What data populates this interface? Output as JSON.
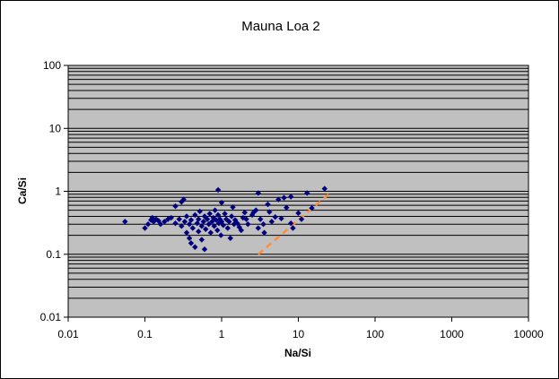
{
  "chart_data": {
    "type": "scatter",
    "title": "Mauna Loa 2",
    "xlabel": "Na/Si",
    "ylabel": "Ca/Si",
    "xscale": "log",
    "yscale": "log",
    "xlim": [
      0.01,
      10000
    ],
    "ylim": [
      0.01,
      100
    ],
    "xticks": [
      0.01,
      0.1,
      1,
      10,
      100,
      1000,
      10000
    ],
    "yticks": [
      0.01,
      0.1,
      1,
      10,
      100
    ],
    "xtick_labels": [
      "0.01",
      "0.1",
      "1",
      "10",
      "100",
      "1000",
      "10000"
    ],
    "ytick_labels": [
      "0.01",
      "0.1",
      "1",
      "10",
      "100"
    ],
    "grid": "horizontal major and minor gridlines",
    "legend": "none",
    "colors": {
      "plot_area": "#c0c0c0",
      "gridline": "#000000",
      "marker": "#000080",
      "trend_line": "#ff8c3a"
    },
    "series": [
      {
        "marker": "diamond",
        "points": [
          [
            0.055,
            0.33
          ],
          [
            0.1,
            0.26
          ],
          [
            0.11,
            0.3
          ],
          [
            0.12,
            0.35
          ],
          [
            0.125,
            0.38
          ],
          [
            0.13,
            0.33
          ],
          [
            0.14,
            0.36
          ],
          [
            0.15,
            0.34
          ],
          [
            0.16,
            0.3
          ],
          [
            0.18,
            0.33
          ],
          [
            0.2,
            0.36
          ],
          [
            0.22,
            0.38
          ],
          [
            0.25,
            0.31
          ],
          [
            0.25,
            0.58
          ],
          [
            0.28,
            0.36
          ],
          [
            0.3,
            0.28
          ],
          [
            0.3,
            0.68
          ],
          [
            0.32,
            0.74
          ],
          [
            0.33,
            0.33
          ],
          [
            0.35,
            0.4
          ],
          [
            0.35,
            0.22
          ],
          [
            0.38,
            0.18
          ],
          [
            0.38,
            0.3
          ],
          [
            0.4,
            0.35
          ],
          [
            0.4,
            0.15
          ],
          [
            0.42,
            0.26
          ],
          [
            0.45,
            0.42
          ],
          [
            0.45,
            0.13
          ],
          [
            0.48,
            0.31
          ],
          [
            0.5,
            0.36
          ],
          [
            0.5,
            0.23
          ],
          [
            0.52,
            0.48
          ],
          [
            0.55,
            0.28
          ],
          [
            0.55,
            0.17
          ],
          [
            0.58,
            0.33
          ],
          [
            0.6,
            0.4
          ],
          [
            0.6,
            0.12
          ],
          [
            0.62,
            0.25
          ],
          [
            0.65,
            0.36
          ],
          [
            0.68,
            0.3
          ],
          [
            0.7,
            0.44
          ],
          [
            0.72,
            0.22
          ],
          [
            0.75,
            0.33
          ],
          [
            0.78,
            0.38
          ],
          [
            0.8,
            0.28
          ],
          [
            0.82,
            0.5
          ],
          [
            0.85,
            0.35
          ],
          [
            0.88,
            0.24
          ],
          [
            0.9,
            1.05
          ],
          [
            0.9,
            0.42
          ],
          [
            0.92,
            0.31
          ],
          [
            0.95,
            0.36
          ],
          [
            0.98,
            0.2
          ],
          [
            1.0,
            0.66
          ],
          [
            1.0,
            0.33
          ],
          [
            1.05,
            0.29
          ],
          [
            1.1,
            0.44
          ],
          [
            1.15,
            0.36
          ],
          [
            1.2,
            0.26
          ],
          [
            1.25,
            0.33
          ],
          [
            1.3,
            0.18
          ],
          [
            1.35,
            0.4
          ],
          [
            1.4,
            0.56
          ],
          [
            1.45,
            0.3
          ],
          [
            1.5,
            0.35
          ],
          [
            1.6,
            0.31
          ],
          [
            1.7,
            0.27
          ],
          [
            1.8,
            0.24
          ],
          [
            1.9,
            0.38
          ],
          [
            2.0,
            0.46
          ],
          [
            2.1,
            0.36
          ],
          [
            2.2,
            0.3
          ],
          [
            2.5,
            0.42
          ],
          [
            2.6,
            0.46
          ],
          [
            2.8,
            0.5
          ],
          [
            3.0,
            0.26
          ],
          [
            3.0,
            0.94
          ],
          [
            3.2,
            0.36
          ],
          [
            3.5,
            0.3
          ],
          [
            3.6,
            0.22
          ],
          [
            4.0,
            0.62
          ],
          [
            4.2,
            0.47
          ],
          [
            4.5,
            0.33
          ],
          [
            5.0,
            0.39
          ],
          [
            5.5,
            0.74
          ],
          [
            6.0,
            0.37
          ],
          [
            6.5,
            0.79
          ],
          [
            7.0,
            0.55
          ],
          [
            8.0,
            0.31
          ],
          [
            8.0,
            0.82
          ],
          [
            8.5,
            0.26
          ],
          [
            10.0,
            0.45
          ],
          [
            11.0,
            0.36
          ],
          [
            13.0,
            0.94
          ],
          [
            15.0,
            0.54
          ],
          [
            22.0,
            1.1
          ]
        ]
      }
    ],
    "trend_line": {
      "style": "dashed",
      "points": [
        [
          3,
          0.1
        ],
        [
          25,
          0.9
        ]
      ]
    }
  }
}
